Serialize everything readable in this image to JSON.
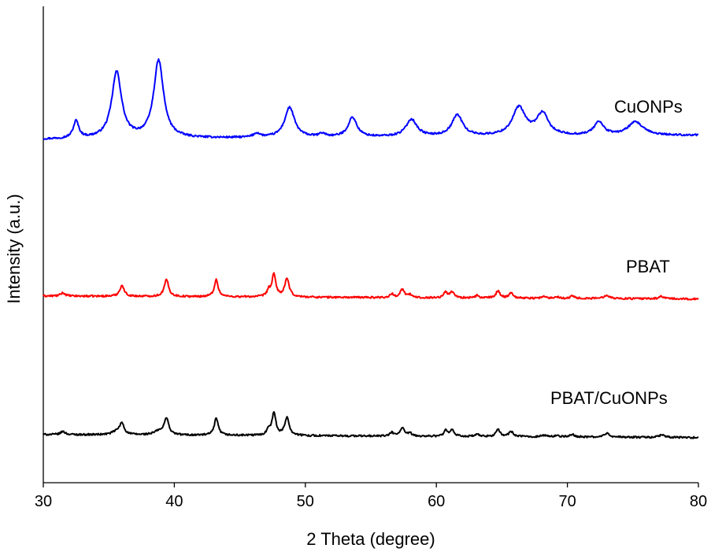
{
  "chart_data": {
    "type": "line",
    "title": "",
    "xlabel": "2 Theta (degree)",
    "ylabel": "Intensity (a.u.)",
    "xlim": [
      30,
      80
    ],
    "x_ticks": [
      "30",
      "40",
      "50",
      "60",
      "70",
      "80"
    ],
    "y_ticks": [],
    "grid": false,
    "legend": "none",
    "series": [
      {
        "name": "CuONPs",
        "color": "#0000ff",
        "baseline": 0.0,
        "slope": 0.004,
        "peaks": [
          [
            32.5,
            0.86,
            0.25
          ],
          [
            35.6,
            3.3,
            0.45
          ],
          [
            38.8,
            3.86,
            0.45
          ],
          [
            46.3,
            0.2,
            0.3
          ],
          [
            48.8,
            1.5,
            0.45
          ],
          [
            51.3,
            0.16,
            0.3
          ],
          [
            53.6,
            0.98,
            0.4
          ],
          [
            58.1,
            0.86,
            0.5
          ],
          [
            61.6,
            1.06,
            0.5
          ],
          [
            66.3,
            1.4,
            0.6
          ],
          [
            68.1,
            1.08,
            0.55
          ],
          [
            72.4,
            0.66,
            0.45
          ],
          [
            75.2,
            0.66,
            0.7
          ]
        ]
      },
      {
        "name": "PBAT",
        "color": "#ff0000",
        "baseline": -7.8,
        "slope": -0.003,
        "peaks": [
          [
            31.5,
            0.16,
            0.2
          ],
          [
            36.0,
            0.54,
            0.2
          ],
          [
            39.4,
            0.84,
            0.2
          ],
          [
            43.2,
            0.84,
            0.18
          ],
          [
            47.2,
            0.3,
            0.15
          ],
          [
            47.6,
            1.1,
            0.18
          ],
          [
            48.6,
            0.9,
            0.2
          ],
          [
            56.6,
            0.18,
            0.15
          ],
          [
            57.4,
            0.42,
            0.2
          ],
          [
            58.0,
            0.14,
            0.15
          ],
          [
            60.7,
            0.28,
            0.15
          ],
          [
            61.2,
            0.3,
            0.2
          ],
          [
            63.1,
            0.12,
            0.15
          ],
          [
            64.7,
            0.36,
            0.18
          ],
          [
            65.7,
            0.26,
            0.2
          ],
          [
            68.2,
            0.08,
            0.2
          ],
          [
            69.2,
            0.08,
            0.2
          ],
          [
            70.4,
            0.12,
            0.2
          ],
          [
            73.0,
            0.18,
            0.25
          ],
          [
            77.2,
            0.12,
            0.25
          ]
        ]
      },
      {
        "name": "PBAT/CuONPs",
        "color": "#000000",
        "baseline": -14.7,
        "slope": -0.003,
        "peaks": [
          [
            31.5,
            0.16,
            0.2
          ],
          [
            35.6,
            0.16,
            0.4
          ],
          [
            36.0,
            0.54,
            0.2
          ],
          [
            38.8,
            0.18,
            0.4
          ],
          [
            39.4,
            0.84,
            0.2
          ],
          [
            43.2,
            0.84,
            0.18
          ],
          [
            47.2,
            0.3,
            0.15
          ],
          [
            47.6,
            1.1,
            0.18
          ],
          [
            48.6,
            0.9,
            0.2
          ],
          [
            56.6,
            0.18,
            0.15
          ],
          [
            57.4,
            0.42,
            0.2
          ],
          [
            58.0,
            0.14,
            0.15
          ],
          [
            60.7,
            0.28,
            0.15
          ],
          [
            61.2,
            0.3,
            0.2
          ],
          [
            63.1,
            0.12,
            0.15
          ],
          [
            64.7,
            0.36,
            0.18
          ],
          [
            65.7,
            0.26,
            0.2
          ],
          [
            68.2,
            0.08,
            0.2
          ],
          [
            69.2,
            0.08,
            0.2
          ],
          [
            70.4,
            0.12,
            0.2
          ],
          [
            73.0,
            0.18,
            0.25
          ],
          [
            77.2,
            0.12,
            0.25
          ]
        ]
      }
    ],
    "labels": [
      "CuONPs",
      "PBAT",
      "PBAT/CuONPs"
    ]
  }
}
